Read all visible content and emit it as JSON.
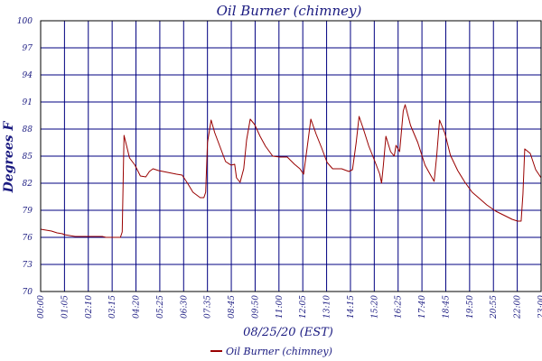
{
  "chart_data": {
    "type": "line",
    "title": "Oil Burner (chimney)",
    "xlabel": "08/25/20 (EST)",
    "ylabel": "Degrees F",
    "x_tick_labels": [
      "00:00",
      "01:05",
      "02:10",
      "03:15",
      "04:20",
      "05:25",
      "06:30",
      "07:35",
      "08:45",
      "09:50",
      "11:00",
      "12:05",
      "13:10",
      "14:15",
      "15:20",
      "16:25",
      "17:40",
      "18:45",
      "19:50",
      "20:55",
      "22:00",
      "23:00"
    ],
    "y_tick_labels": [
      "100",
      "97",
      "94",
      "91",
      "88",
      "85",
      "82",
      "79",
      "76",
      "73",
      "70"
    ],
    "ylim": [
      70,
      100
    ],
    "grid": true,
    "legend_position": "bottom-center",
    "series": [
      {
        "name": "Oil Burner (chimney)",
        "color": "#990000",
        "points": [
          [
            "00:00",
            76.9
          ],
          [
            "00:15",
            76.8
          ],
          [
            "00:30",
            76.7
          ],
          [
            "00:45",
            76.5
          ],
          [
            "01:00",
            76.4
          ],
          [
            "01:05",
            76.3
          ],
          [
            "01:20",
            76.2
          ],
          [
            "01:35",
            76.1
          ],
          [
            "01:50",
            76.1
          ],
          [
            "02:10",
            76.1
          ],
          [
            "02:50",
            76.1
          ],
          [
            "03:00",
            76.0
          ],
          [
            "03:15",
            76.0
          ],
          [
            "03:40",
            76.0
          ],
          [
            "03:45",
            76.6
          ],
          [
            "03:50",
            87.3
          ],
          [
            "03:58",
            86.0
          ],
          [
            "04:05",
            84.8
          ],
          [
            "04:20",
            84.0
          ],
          [
            "04:35",
            82.8
          ],
          [
            "04:50",
            82.7
          ],
          [
            "05:00",
            83.3
          ],
          [
            "05:10",
            83.6
          ],
          [
            "05:25",
            83.4
          ],
          [
            "05:50",
            83.2
          ],
          [
            "06:15",
            83.0
          ],
          [
            "06:30",
            82.9
          ],
          [
            "06:45",
            82.0
          ],
          [
            "07:00",
            81.0
          ],
          [
            "07:20",
            80.4
          ],
          [
            "07:30",
            80.4
          ],
          [
            "07:35",
            81.0
          ],
          [
            "07:40",
            86.5
          ],
          [
            "07:50",
            89.0
          ],
          [
            "08:00",
            87.6
          ],
          [
            "08:15",
            86.0
          ],
          [
            "08:30",
            84.4
          ],
          [
            "08:45",
            84.0
          ],
          [
            "08:55",
            84.1
          ],
          [
            "09:00",
            82.6
          ],
          [
            "09:10",
            82.1
          ],
          [
            "09:20",
            83.6
          ],
          [
            "09:28",
            86.8
          ],
          [
            "09:38",
            89.1
          ],
          [
            "09:50",
            88.5
          ],
          [
            "10:05",
            87.2
          ],
          [
            "10:20",
            86.1
          ],
          [
            "10:40",
            85.0
          ],
          [
            "11:00",
            84.9
          ],
          [
            "11:20",
            84.9
          ],
          [
            "11:40",
            84.1
          ],
          [
            "11:55",
            83.6
          ],
          [
            "12:05",
            83.0
          ],
          [
            "12:15",
            86.0
          ],
          [
            "12:25",
            89.1
          ],
          [
            "12:40",
            87.4
          ],
          [
            "12:55",
            85.9
          ],
          [
            "13:10",
            84.3
          ],
          [
            "13:25",
            83.6
          ],
          [
            "13:50",
            83.6
          ],
          [
            "14:10",
            83.3
          ],
          [
            "14:20",
            83.5
          ],
          [
            "14:30",
            86.5
          ],
          [
            "14:38",
            89.4
          ],
          [
            "14:50",
            88.0
          ],
          [
            "15:05",
            86.1
          ],
          [
            "15:20",
            84.6
          ],
          [
            "15:35",
            83.0
          ],
          [
            "15:40",
            82.0
          ],
          [
            "15:45",
            84.0
          ],
          [
            "15:52",
            87.2
          ],
          [
            "16:05",
            85.5
          ],
          [
            "16:15",
            85.0
          ],
          [
            "16:20",
            86.2
          ],
          [
            "16:30",
            85.5
          ],
          [
            "16:40",
            90.0
          ],
          [
            "16:45",
            90.7
          ],
          [
            "17:00",
            88.4
          ],
          [
            "17:20",
            86.5
          ],
          [
            "17:40",
            84.0
          ],
          [
            "17:55",
            82.9
          ],
          [
            "18:05",
            82.2
          ],
          [
            "18:12",
            85.0
          ],
          [
            "18:20",
            89.0
          ],
          [
            "18:35",
            87.5
          ],
          [
            "18:50",
            85.1
          ],
          [
            "19:10",
            83.4
          ],
          [
            "19:30",
            82.1
          ],
          [
            "19:50",
            81.0
          ],
          [
            "20:10",
            80.3
          ],
          [
            "20:30",
            79.6
          ],
          [
            "20:55",
            78.9
          ],
          [
            "21:20",
            78.4
          ],
          [
            "21:40",
            78.0
          ],
          [
            "21:55",
            77.8
          ],
          [
            "22:05",
            77.8
          ],
          [
            "22:10",
            80.8
          ],
          [
            "22:15",
            85.8
          ],
          [
            "22:30",
            85.3
          ],
          [
            "22:45",
            83.5
          ],
          [
            "23:00",
            82.6
          ]
        ]
      }
    ]
  }
}
